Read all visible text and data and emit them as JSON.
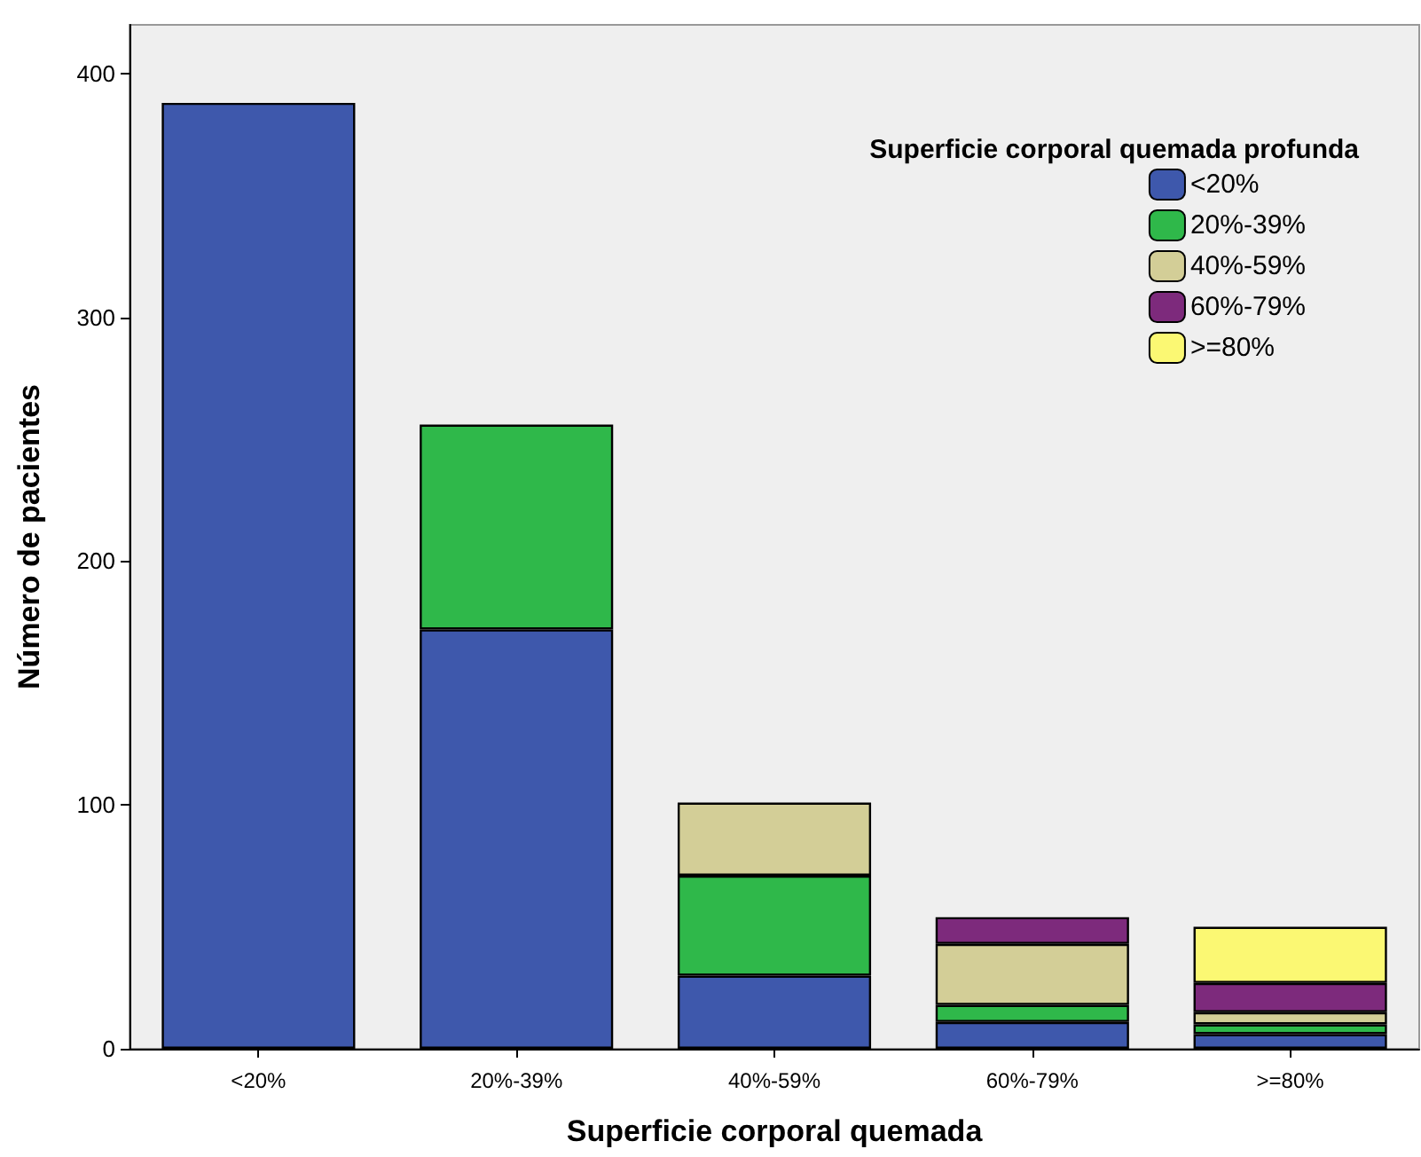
{
  "chart_data": {
    "type": "bar",
    "stacked": true,
    "xlabel": "Superficie corporal quemada",
    "ylabel": "Número de pacientes",
    "legend_title": "Superficie corporal quemada profunda",
    "categories": [
      "<20%",
      "20%-39%",
      "40%-59%",
      "60%-79%",
      ">=80%"
    ],
    "series": [
      {
        "name": "<20%",
        "color": "#3e58ac",
        "values": [
          388,
          172,
          30,
          11,
          6
        ]
      },
      {
        "name": "20%-39%",
        "color": "#2fb84a",
        "values": [
          null,
          84,
          41,
          7,
          4
        ]
      },
      {
        "name": "40%-59%",
        "color": "#d3ce97",
        "values": [
          null,
          null,
          30,
          25,
          5
        ]
      },
      {
        "name": "60%-79%",
        "color": "#7d2a7c",
        "values": [
          null,
          null,
          null,
          11,
          12
        ]
      },
      {
        "name": ">=80%",
        "color": "#fbf873",
        "values": [
          null,
          null,
          null,
          null,
          23
        ]
      }
    ],
    "ylim": [
      0,
      420
    ],
    "yticks": [
      0,
      100,
      200,
      300,
      400
    ],
    "grid": false,
    "legend": "top right"
  }
}
